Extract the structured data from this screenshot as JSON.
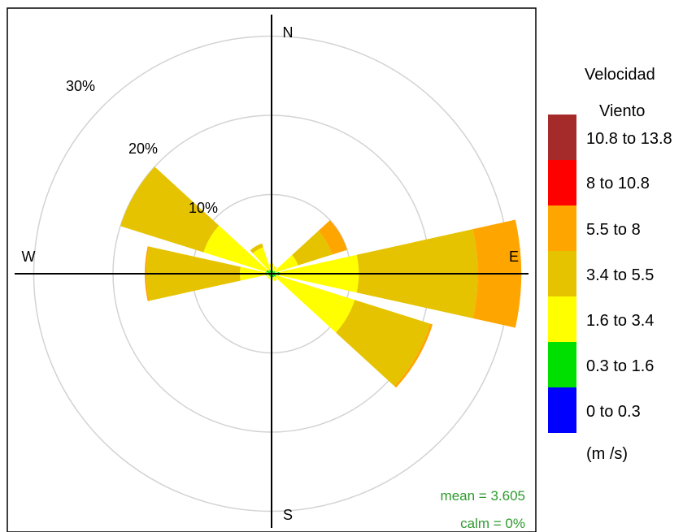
{
  "chart_data": {
    "type": "windrose",
    "unit": "%",
    "rings": [
      10,
      20,
      30
    ],
    "ring_labels": [
      "10%",
      "20%",
      "30%"
    ],
    "compass": {
      "north": "N",
      "south": "S",
      "east": "E",
      "west": "W"
    },
    "legend": {
      "title_line1": "Velocidad",
      "title_line2": "Viento",
      "unit": "(m /s)",
      "bins": [
        {
          "label": "10.8 to 13.8",
          "color": "#a52a2a"
        },
        {
          "label": "8 to 10.8",
          "color": "#ff0000"
        },
        {
          "label": "5.5 to 8",
          "color": "#ffa500"
        },
        {
          "label": "3.4 to 5.5",
          "color": "#e6c300"
        },
        {
          "label": "1.6 to 3.4",
          "color": "#ffff00"
        },
        {
          "label": "0.3 to 1.6",
          "color": "#00e000"
        },
        {
          "label": "0 to 0.3",
          "color": "#0000ff"
        }
      ]
    },
    "stats": {
      "mean": "mean = 3.605",
      "calm": "calm = 0%"
    },
    "directions": [
      {
        "dir": 0,
        "cum": [
          0,
          0.4,
          1.3,
          1.3,
          1.3,
          1.3,
          1.3
        ]
      },
      {
        "dir": 30,
        "cum": [
          0,
          0.4,
          1.0,
          1.0,
          1.0,
          1.0,
          1.0
        ]
      },
      {
        "dir": 60,
        "cum": [
          0,
          0.5,
          3.5,
          8.0,
          10.0,
          10.0,
          10.0
        ]
      },
      {
        "dir": 90,
        "cum": [
          0,
          1.0,
          11.0,
          26.0,
          31.5,
          31.5,
          31.5
        ]
      },
      {
        "dir": 120,
        "cum": [
          0,
          0.6,
          11.0,
          21.0,
          21.3,
          21.3,
          21.3
        ]
      },
      {
        "dir": 150,
        "cum": [
          0,
          0.5,
          1.0,
          1.0,
          1.0,
          1.0,
          1.0
        ]
      },
      {
        "dir": 180,
        "cum": [
          0,
          0.5,
          0.8,
          0.8,
          0.8,
          0.8,
          0.8
        ]
      },
      {
        "dir": 210,
        "cum": [
          0,
          0.4,
          0.7,
          0.7,
          0.7,
          0.7,
          0.7
        ]
      },
      {
        "dir": 240,
        "cum": [
          0,
          0.4,
          0.7,
          0.7,
          0.7,
          0.7,
          0.7
        ]
      },
      {
        "dir": 270,
        "cum": [
          0,
          0.8,
          4.0,
          15.8,
          16.0,
          16.0,
          16.0
        ]
      },
      {
        "dir": 300,
        "cum": [
          0,
          0.7,
          9.0,
          20.0,
          20.0,
          20.0,
          20.0
        ]
      },
      {
        "dir": 330,
        "cum": [
          0,
          0.5,
          3.5,
          4.0,
          4.0,
          4.0,
          4.0
        ]
      }
    ]
  }
}
